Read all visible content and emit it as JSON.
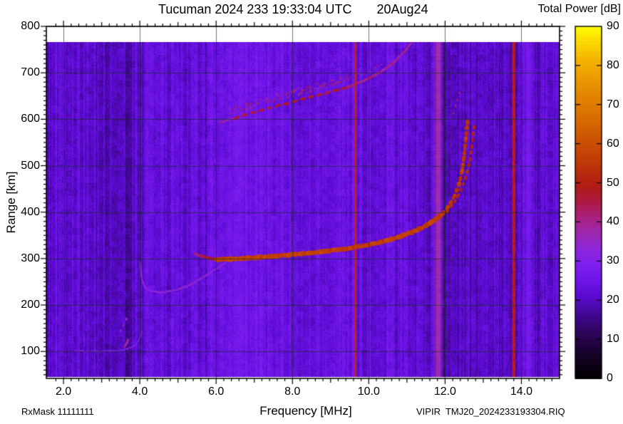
{
  "header": {
    "title": "Tucuman 2024 233 19:33:04 UTC       20Aug24",
    "colorbar_title": "Total Power [dB]"
  },
  "footer": {
    "rx_mask": "RxMask 11111111",
    "file_label": "VIPIR  TMJ20_2024233193304.RIQ"
  },
  "chart_data": {
    "type": "heatmap",
    "title": "Tucuman 2024 233 19:33:04 UTC",
    "date_label": "20Aug24",
    "xlabel": "Frequency [MHz]",
    "ylabel": "Range [km]",
    "xlim": [
      1.55,
      15.0
    ],
    "ylim": [
      42,
      800
    ],
    "zlim": [
      0,
      90
    ],
    "grid": true,
    "grid_color": "#1c3a1c",
    "frame_color": "#000000",
    "x_ticks": [
      {
        "v": 2.0,
        "label": "2.0"
      },
      {
        "v": 4.0,
        "label": "4.0"
      },
      {
        "v": 6.0,
        "label": "6.0"
      },
      {
        "v": 8.0,
        "label": "8.0"
      },
      {
        "v": 10.0,
        "label": "10.0"
      },
      {
        "v": 12.0,
        "label": "12.0"
      },
      {
        "v": 14.0,
        "label": "14.0"
      }
    ],
    "x_minor_step": 0.2,
    "y_ticks": [
      {
        "v": 100,
        "label": "100"
      },
      {
        "v": 200,
        "label": "200"
      },
      {
        "v": 300,
        "label": "300"
      },
      {
        "v": 400,
        "label": "400"
      },
      {
        "v": 500,
        "label": "500"
      },
      {
        "v": 600,
        "label": "600"
      },
      {
        "v": 700,
        "label": "700"
      },
      {
        "v": 800,
        "label": "800"
      }
    ],
    "y_minor_step": 10,
    "colorbar": {
      "title": "Total Power [dB]",
      "position": "right",
      "ticks": [
        {
          "v": 0,
          "label": "0"
        },
        {
          "v": 10,
          "label": "10"
        },
        {
          "v": 20,
          "label": "20"
        },
        {
          "v": 30,
          "label": "30"
        },
        {
          "v": 40,
          "label": "40"
        },
        {
          "v": 50,
          "label": "50"
        },
        {
          "v": 60,
          "label": "60"
        },
        {
          "v": 70,
          "label": "70"
        },
        {
          "v": 80,
          "label": "80"
        },
        {
          "v": 90,
          "label": "90"
        }
      ]
    },
    "colormap_stops": [
      [
        0,
        "#000000"
      ],
      [
        6,
        "#150226"
      ],
      [
        12,
        "#2e055e"
      ],
      [
        17,
        "#44089a"
      ],
      [
        21,
        "#5a0bd0"
      ],
      [
        25,
        "#6e14e8"
      ],
      [
        29,
        "#7d1fee"
      ],
      [
        33,
        "#8c26dc"
      ],
      [
        37,
        "#9c28b0"
      ],
      [
        41,
        "#a82280"
      ],
      [
        45,
        "#ad1a46"
      ],
      [
        49,
        "#b01b16"
      ],
      [
        54,
        "#bb3208"
      ],
      [
        60,
        "#c94e03"
      ],
      [
        67,
        "#d86e00"
      ],
      [
        74,
        "#e68c00"
      ],
      [
        81,
        "#f2b000"
      ],
      [
        87,
        "#fcdf00"
      ],
      [
        90,
        "#ffff00"
      ]
    ],
    "data_range_km": [
      45,
      766
    ],
    "background_noise_bands": [
      {
        "f0": 1.55,
        "f1": 2.6,
        "level": 21.5,
        "amp": 3.5
      },
      {
        "f0": 2.6,
        "f1": 4.2,
        "level": 21.0,
        "amp": 4.0
      },
      {
        "f0": 4.2,
        "f1": 5.8,
        "level": 22.0,
        "amp": 3.0
      },
      {
        "f0": 5.8,
        "f1": 7.3,
        "level": 25.5,
        "amp": 1.8
      },
      {
        "f0": 7.3,
        "f1": 8.6,
        "level": 23.5,
        "amp": 2.2
      },
      {
        "f0": 8.6,
        "f1": 9.6,
        "level": 24.0,
        "amp": 2.6
      },
      {
        "f0": 9.6,
        "f1": 10.6,
        "level": 22.5,
        "amp": 3.0
      },
      {
        "f0": 10.6,
        "f1": 11.9,
        "level": 22.0,
        "amp": 3.2
      },
      {
        "f0": 11.9,
        "f1": 12.85,
        "level": 18.5,
        "amp": 3.4
      },
      {
        "f0": 12.85,
        "f1": 13.9,
        "level": 21.0,
        "amp": 3.0
      },
      {
        "f0": 13.9,
        "f1": 14.35,
        "level": 24.5,
        "amp": 2.0
      },
      {
        "f0": 14.35,
        "f1": 15.0,
        "level": 21.5,
        "amp": 3.0
      }
    ],
    "rfi_lines": [
      {
        "freq": 9.65,
        "width": 3,
        "color": "#c62114",
        "alpha": 1.0,
        "soft": false
      },
      {
        "freq": 11.82,
        "width": 13,
        "color": "#a32fae",
        "alpha": 0.85,
        "soft": true
      },
      {
        "freq": 13.8,
        "width": 4,
        "color": "#c41d10",
        "alpha": 1.0,
        "soft": false
      },
      {
        "freq": 14.18,
        "width": 11,
        "color": "#8023f0",
        "alpha": 0.45,
        "soft": true
      },
      {
        "freq": 10.85,
        "width": 2,
        "color": "#8022ee",
        "alpha": 0.5,
        "soft": false
      },
      {
        "freq": 12.62,
        "width": 2,
        "color": "#7b1de8",
        "alpha": 0.45,
        "soft": false
      },
      {
        "freq": 14.52,
        "width": 2,
        "color": "#8022ee",
        "alpha": 0.4,
        "soft": false
      }
    ],
    "traces": [
      {
        "name": "E-layer-echo",
        "style": "solid",
        "width": 2,
        "power": 30,
        "alpha": 0.85,
        "layer": 1,
        "points": [
          [
            2.3,
            101
          ],
          [
            2.7,
            100
          ],
          [
            3.1,
            100
          ],
          [
            3.45,
            102
          ],
          [
            3.7,
            106
          ],
          [
            3.85,
            112
          ],
          [
            3.95,
            121
          ],
          [
            4.02,
            133
          ],
          [
            4.06,
            145
          ]
        ]
      },
      {
        "name": "E-layer-blip",
        "style": "solid",
        "width": 3,
        "power": 38,
        "alpha": 0.9,
        "layer": 1,
        "points": [
          [
            3.6,
            110
          ],
          [
            3.66,
            118
          ],
          [
            3.7,
            126
          ]
        ]
      },
      {
        "name": "E-layer-specks",
        "style": "dotted",
        "width": 2.5,
        "power": 35,
        "dash": 3,
        "gap": 6,
        "alpha": 0.8,
        "layer": 1,
        "points": [
          [
            3.5,
            144
          ],
          [
            3.58,
            158
          ],
          [
            3.66,
            172
          ]
        ]
      },
      {
        "name": "F1-cusp",
        "style": "solid",
        "width": 2.5,
        "power": 33,
        "alpha": 0.9,
        "layer": 1,
        "points": [
          [
            4.0,
            292
          ],
          [
            4.03,
            268
          ],
          [
            4.08,
            248
          ],
          [
            4.15,
            237
          ],
          [
            4.3,
            230
          ],
          [
            4.55,
            227
          ],
          [
            4.9,
            231
          ],
          [
            5.25,
            241
          ],
          [
            5.55,
            254
          ],
          [
            5.85,
            270
          ],
          [
            6.1,
            283
          ],
          [
            6.3,
            296
          ]
        ]
      },
      {
        "name": "F2-hop-lead",
        "style": "solid",
        "width": 2.5,
        "power": 38,
        "alpha": 0.85,
        "layer": 1,
        "points": [
          [
            6.1,
            593
          ],
          [
            6.5,
            603
          ]
        ]
      },
      {
        "name": "F2-hop-bright",
        "style": "dashed",
        "width": 3,
        "power": 47,
        "dash": 7,
        "gap": 5,
        "alpha": 1,
        "layer": 1,
        "points": [
          [
            6.5,
            603
          ],
          [
            7.1,
            618
          ],
          [
            7.7,
            631
          ],
          [
            8.3,
            644
          ],
          [
            8.9,
            657
          ],
          [
            9.45,
            669
          ]
        ]
      },
      {
        "name": "F2-hop-tail",
        "style": "solid",
        "width": 3,
        "power": 40,
        "alpha": 0.9,
        "layer": 1,
        "points": [
          [
            9.45,
            669
          ],
          [
            9.9,
            684
          ],
          [
            10.3,
            701
          ],
          [
            10.65,
            722
          ],
          [
            10.95,
            746
          ],
          [
            11.12,
            766
          ]
        ]
      },
      {
        "name": "F2-hop-scatter",
        "style": "scatter",
        "width": 2.5,
        "power": 41,
        "spread": 10,
        "density": 0.55,
        "alpha": 0.9,
        "layer": 1,
        "points": [
          [
            6.3,
            614
          ],
          [
            7.0,
            634
          ],
          [
            7.7,
            650
          ],
          [
            8.4,
            664
          ],
          [
            9.0,
            677
          ],
          [
            9.5,
            688
          ]
        ]
      },
      {
        "name": "F2-hop-scatter-tail",
        "style": "scatter",
        "width": 2,
        "power": 37,
        "spread": 8,
        "density": 0.35,
        "alpha": 0.8,
        "layer": 1,
        "points": [
          [
            9.6,
            692
          ],
          [
            10.1,
            706
          ],
          [
            10.6,
            726
          ]
        ]
      },
      {
        "name": "F1-ordinary-leadin",
        "style": "solid",
        "width": 3.5,
        "power": 40,
        "power_end": 52,
        "alpha": 0.9,
        "layer": 2,
        "points": [
          [
            5.45,
            310
          ],
          [
            5.75,
            302
          ],
          [
            6.0,
            298
          ]
        ]
      },
      {
        "name": "F1-ordinary-main",
        "style": "solid",
        "width": 5.5,
        "power": 57,
        "alpha": 1,
        "layer": 2,
        "points": [
          [
            6.0,
            298
          ],
          [
            6.4,
            299
          ],
          [
            7.0,
            302
          ],
          [
            7.6,
            306
          ],
          [
            8.2,
            310
          ],
          [
            8.8,
            315
          ],
          [
            9.4,
            321
          ],
          [
            9.9,
            328
          ],
          [
            10.4,
            337
          ],
          [
            10.8,
            347
          ],
          [
            11.2,
            359
          ],
          [
            11.5,
            371
          ],
          [
            11.8,
            387
          ],
          [
            11.95,
            398
          ]
        ]
      },
      {
        "name": "F1-ordinary-asymptote",
        "style": "dotted",
        "width": 4.5,
        "power": 55,
        "dash": 5,
        "gap": 4,
        "alpha": 1,
        "layer": 2,
        "points": [
          [
            11.95,
            398
          ],
          [
            12.1,
            414
          ],
          [
            12.25,
            436
          ],
          [
            12.37,
            462
          ],
          [
            12.45,
            492
          ],
          [
            12.5,
            522
          ],
          [
            12.54,
            552
          ],
          [
            12.57,
            580
          ],
          [
            12.59,
            598
          ]
        ]
      },
      {
        "name": "F1-extraordinary-asymptote",
        "style": "dotted",
        "width": 3.5,
        "power": 51,
        "dash": 4,
        "gap": 5,
        "alpha": 0.95,
        "layer": 2,
        "points": [
          [
            12.05,
            400
          ],
          [
            12.25,
            422
          ],
          [
            12.42,
            448
          ],
          [
            12.55,
            476
          ],
          [
            12.64,
            508
          ],
          [
            12.7,
            540
          ],
          [
            12.74,
            568
          ],
          [
            12.77,
            590
          ]
        ]
      },
      {
        "name": "F1-steep-specks",
        "style": "dotted",
        "width": 2.5,
        "power": 42,
        "dash": 3,
        "gap": 7,
        "alpha": 0.8,
        "layer": 2,
        "points": [
          [
            12.22,
            612
          ],
          [
            12.32,
            640
          ],
          [
            12.4,
            662
          ]
        ]
      }
    ]
  }
}
